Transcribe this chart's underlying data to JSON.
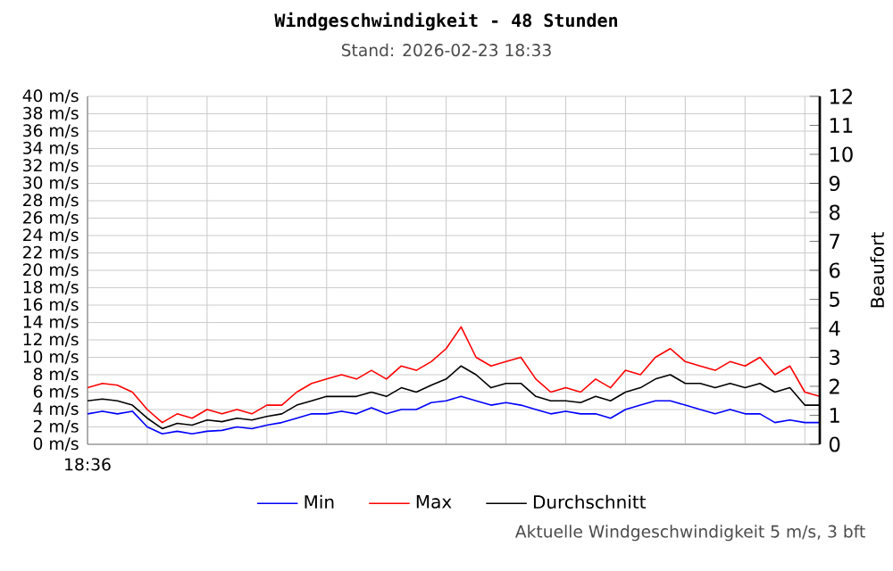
{
  "chart_data": {
    "type": "line",
    "title": "Windgeschwindigkeit - 48 Stunden",
    "subtitle": "Stand: 2026-02-23 18:33",
    "y2label": "Beaufort",
    "annotations": [
      "18:36",
      "Aktuelle Windgeschwindigkeit 5 m/s, 3 bft"
    ],
    "categories": [
      null,
      null,
      null,
      null,
      null,
      null,
      null,
      null,
      null,
      null,
      null,
      null,
      null,
      null,
      null,
      null,
      null,
      null,
      null,
      null,
      null,
      null,
      null,
      null,
      null,
      null,
      null,
      null,
      null,
      null,
      null,
      null,
      null,
      null,
      null,
      null,
      null,
      null,
      null,
      null,
      null,
      null,
      null,
      null,
      null,
      null,
      null,
      null,
      null,
      null
    ],
    "series": [
      {
        "name": "Min",
        "color": "#0000ff",
        "values": [
          3.5,
          3.8,
          3.5,
          3.8,
          2,
          1.2,
          1.5,
          1.2,
          1.5,
          1.6,
          2,
          1.8,
          2.2,
          2.5,
          3,
          3.5,
          3.5,
          3.8,
          3.5,
          4.2,
          3.5,
          4,
          4,
          4.8,
          5,
          5.5,
          5,
          4.5,
          4.8,
          4.5,
          4,
          3.5,
          3.8,
          3.5,
          3.5,
          3,
          4,
          4.5,
          5,
          5,
          4.5,
          4,
          3.5,
          4,
          3.5,
          3.5,
          2.5,
          2.8,
          2.5,
          2.5
        ]
      },
      {
        "name": "Max",
        "color": "#ff0000",
        "values": [
          6.5,
          7,
          6.8,
          6,
          4,
          2.5,
          3.5,
          3,
          4,
          3.5,
          4,
          3.5,
          4.5,
          4.5,
          6,
          7,
          7.5,
          8,
          7.5,
          8.5,
          7.5,
          9,
          8.5,
          9.5,
          11,
          13.5,
          10,
          9,
          9.5,
          10,
          7.5,
          6,
          6.5,
          6,
          7.5,
          6.5,
          8.5,
          8,
          10,
          11,
          9.5,
          9,
          8.5,
          9.5,
          9,
          10,
          8,
          9,
          6,
          5.5
        ]
      },
      {
        "name": "Durchschnitt",
        "color": "#000000",
        "values": [
          5,
          5.2,
          5,
          4.5,
          3,
          1.8,
          2.4,
          2.2,
          2.8,
          2.6,
          3,
          2.8,
          3.2,
          3.5,
          4.5,
          5,
          5.5,
          5.5,
          5.5,
          6,
          5.5,
          6.5,
          6,
          6.8,
          7.5,
          9,
          8,
          6.5,
          7,
          7,
          5.5,
          5,
          5,
          4.8,
          5.5,
          5,
          6,
          6.5,
          7.5,
          8,
          7,
          7,
          6.5,
          7,
          6.5,
          7,
          6,
          6.5,
          4.5,
          4.5
        ]
      }
    ],
    "ylim": [
      0,
      40
    ],
    "yticks": [
      {
        "value": 0,
        "label": "0 m/s"
      },
      {
        "value": 2,
        "label": "2 m/s"
      },
      {
        "value": 4,
        "label": "4 m/s"
      },
      {
        "value": 6,
        "label": "6 m/s"
      },
      {
        "value": 8,
        "label": "8 m/s"
      },
      {
        "value": 10,
        "label": "10 m/s"
      },
      {
        "value": 12,
        "label": "12 m/s"
      },
      {
        "value": 14,
        "label": "14 m/s"
      },
      {
        "value": 16,
        "label": "16 m/s"
      },
      {
        "value": 18,
        "label": "18 m/s"
      },
      {
        "value": 20,
        "label": "20 m/s"
      },
      {
        "value": 22,
        "label": "22 m/s"
      },
      {
        "value": 24,
        "label": "24 m/s"
      },
      {
        "value": 26,
        "label": "26 m/s"
      },
      {
        "value": 28,
        "label": "28 m/s"
      },
      {
        "value": 30,
        "label": "30 m/s"
      },
      {
        "value": 32,
        "label": "32 m/s"
      },
      {
        "value": 34,
        "label": "34 m/s"
      },
      {
        "value": 36,
        "label": "36 m/s"
      },
      {
        "value": 38,
        "label": "38 m/s"
      },
      {
        "value": 40,
        "label": "40 m/s"
      }
    ],
    "y2lim": [
      0,
      12
    ],
    "y2ticks": [
      0,
      1,
      2,
      3,
      4,
      5,
      6,
      7,
      8,
      9,
      10,
      11,
      12
    ],
    "grid": true,
    "legend": "bottom"
  }
}
